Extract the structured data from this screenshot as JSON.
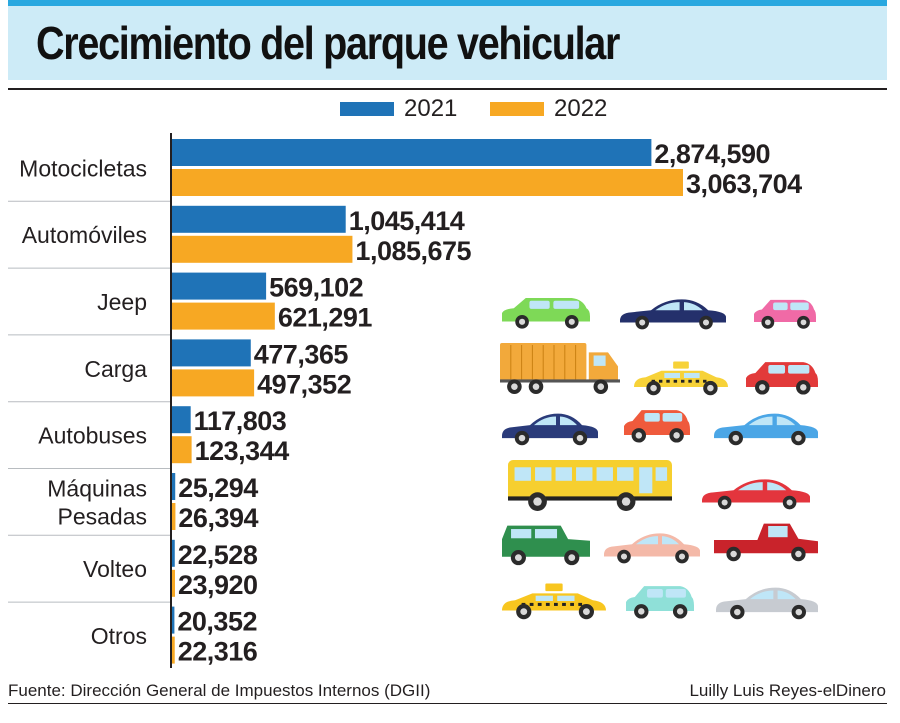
{
  "title": "Crecimiento del parque vehicular",
  "legend": [
    {
      "label": "2021",
      "color": "#1f73b7"
    },
    {
      "label": "2022",
      "color": "#f7a823"
    }
  ],
  "chart_data": {
    "type": "bar",
    "orientation": "horizontal",
    "title": "Crecimiento del parque vehicular",
    "categories": [
      "Motocicletas",
      "Automóviles",
      "Jeep",
      "Carga",
      "Autobuses",
      "Máquinas Pesadas",
      "Volteo",
      "Otros"
    ],
    "category_lines": [
      [
        "Motocicletas"
      ],
      [
        "Automóviles"
      ],
      [
        "Jeep"
      ],
      [
        "Carga"
      ],
      [
        "Autobuses"
      ],
      [
        "Máquinas",
        "Pesadas"
      ],
      [
        "Volteo"
      ],
      [
        "Otros"
      ]
    ],
    "series": [
      {
        "name": "2021",
        "color": "#1f73b7",
        "values": [
          2874590,
          1045414,
          569102,
          477365,
          117803,
          25294,
          22528,
          20352
        ],
        "labels": [
          "2,874,590",
          "1,045,414",
          "569,102",
          "477,365",
          "117,803",
          "25,294",
          "22,528",
          "20,352"
        ]
      },
      {
        "name": "2022",
        "color": "#f7a823",
        "values": [
          3063704,
          1085675,
          621291,
          497352,
          123344,
          26394,
          23920,
          22316
        ],
        "labels": [
          "3,063,704",
          "1,085,675",
          "621,291",
          "497,352",
          "123,344",
          "26,394",
          "23,920",
          "22,316"
        ]
      }
    ],
    "xlim": [
      0,
      3063704
    ],
    "legend_position": "top-center"
  },
  "vehicles": [
    {
      "name": "green-suv",
      "body": "#7ed957"
    },
    {
      "name": "navy-sedan",
      "body": "#24306b"
    },
    {
      "name": "pink-hatchback",
      "body": "#f06aa6"
    },
    {
      "name": "delivery-truck",
      "body": "#f2a93b"
    },
    {
      "name": "yellow-taxi-small",
      "body": "#f7d238"
    },
    {
      "name": "red-hatchback",
      "body": "#e23a3a"
    },
    {
      "name": "navy-coupe",
      "body": "#2a3b7a"
    },
    {
      "name": "orange-minicar",
      "body": "#ef5a3c"
    },
    {
      "name": "blue-sedan",
      "body": "#4ba6e6"
    },
    {
      "name": "school-bus",
      "body": "#f6cf2f"
    },
    {
      "name": "red-sports-car",
      "body": "#e3353d"
    },
    {
      "name": "green-jeep",
      "body": "#2f8f4e"
    },
    {
      "name": "pink-sedan",
      "body": "#f4b9a8"
    },
    {
      "name": "red-pickup",
      "body": "#c9232b"
    },
    {
      "name": "yellow-taxi",
      "body": "#f8c61f"
    },
    {
      "name": "mint-minicar",
      "body": "#8fe0d8"
    },
    {
      "name": "silver-sedan",
      "body": "#c7cbd1"
    }
  ],
  "footer": {
    "source": "Fuente: Dirección General de Impuestos Internos (DGII)",
    "credit": "Luilly Luis Reyes-elDinero"
  }
}
